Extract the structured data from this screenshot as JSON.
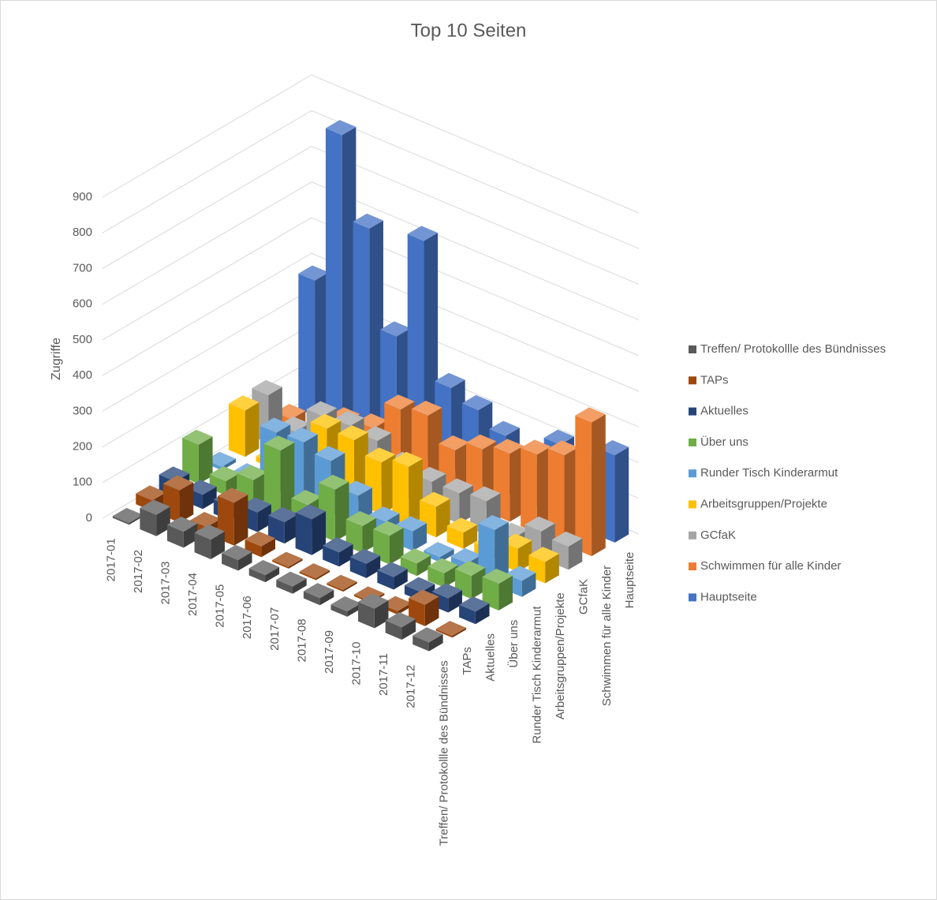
{
  "chart_data": {
    "type": "bar3d",
    "title": "Top 10 Seiten",
    "y_label": "Zugriffe",
    "categories": [
      "2017-01",
      "2017-02",
      "2017-03",
      "2017-04",
      "2017-05",
      "2017-06",
      "2017-07",
      "2017-08",
      "2017-09",
      "2017-10",
      "2017-11",
      "2017-12"
    ],
    "series": [
      {
        "name": "Treffen/ Protokollle des Bündnisses",
        "axis_label": "Treffen/ Protokollle des Bündnisses",
        "color": "#595959",
        "values": [
          5,
          60,
          45,
          55,
          30,
          20,
          20,
          20,
          15,
          55,
          35,
          25
        ]
      },
      {
        "name": "TAPs",
        "axis_label": "TAPs",
        "color": "#9e480e",
        "values": [
          30,
          90,
          20,
          120,
          30,
          5,
          5,
          5,
          5,
          10,
          60,
          5
        ]
      },
      {
        "name": "Aktuelles",
        "axis_label": "Aktuelles",
        "color": "#264478",
        "values": [
          45,
          40,
          40,
          55,
          60,
          100,
          40,
          40,
          35,
          25,
          40,
          35
        ]
      },
      {
        "name": "Über uns",
        "axis_label": "Über uns",
        "color": "#70ad47",
        "values": [
          110,
          40,
          75,
          190,
          70,
          145,
          75,
          80,
          35,
          40,
          65,
          75
        ]
      },
      {
        "name": "Runder Tisch Kinderarmut",
        "axis_label": "Runder Tisch Kinderarmut",
        "color": "#5b9bd5",
        "values": [
          10,
          10,
          170,
          175,
          155,
          90,
          50,
          55,
          15,
          30,
          155,
          45
        ]
      },
      {
        "name": "Arbeitsgruppen/Projekte",
        "axis_label": "Arbeitsgruppen/Projekte",
        "color": "#ffc000",
        "values": [
          130,
          15,
          20,
          175,
          175,
          145,
          165,
          85,
          45,
          30,
          65,
          60
        ]
      },
      {
        "name": "GCfaK",
        "axis_label": "GCfaK",
        "color": "#a5a5a5",
        "values": [
          135,
          65,
          140,
          145,
          135,
          95,
          85,
          85,
          95,
          25,
          75,
          65
        ]
      },
      {
        "name": "Schwimmen für alle Kinder",
        "axis_label": "Schwimmen für alle Kinder",
        "color": "#ed7d31",
        "values": [
          30,
          20,
          85,
          100,
          185,
          200,
          135,
          170,
          190,
          220,
          250,
          375
        ]
      },
      {
        "name": "Hauptseite",
        "axis_label": "Hauptseite",
        "color": "#4472c4",
        "values": [
          380,
          820,
          590,
          320,
          620,
          240,
          210,
          170,
          120,
          210,
          180,
          245
        ]
      }
    ],
    "ylim": [
      0,
      900
    ],
    "yticks": [
      0,
      100,
      200,
      300,
      400,
      500,
      600,
      700,
      800,
      900
    ],
    "grid": true,
    "legend": "right"
  }
}
